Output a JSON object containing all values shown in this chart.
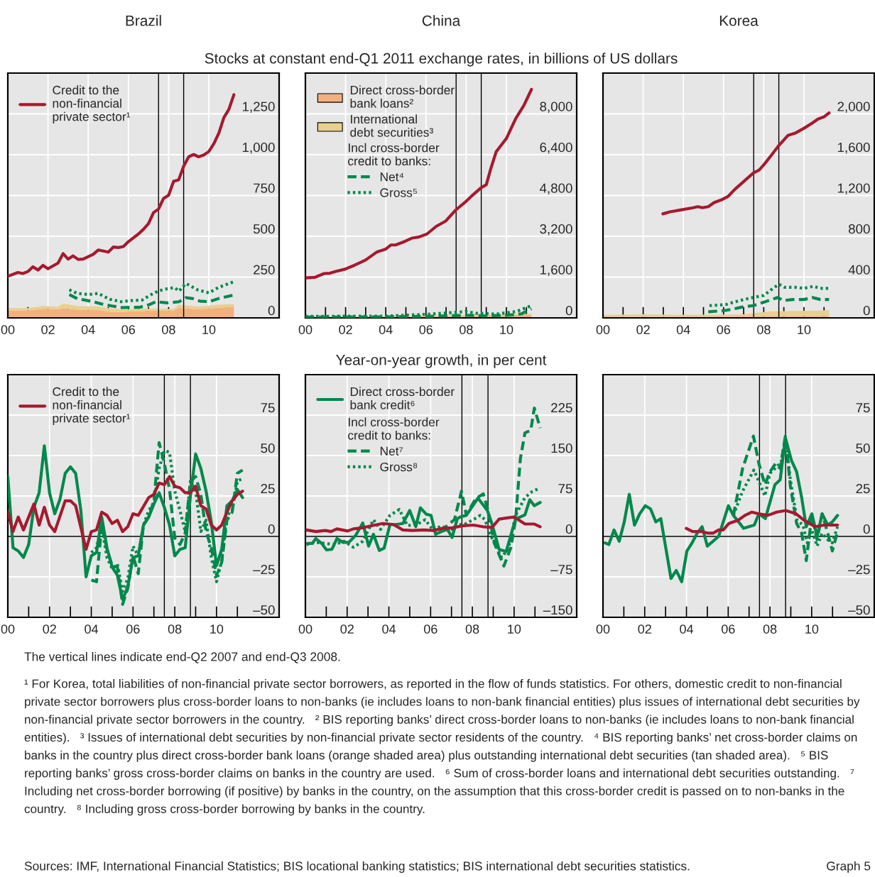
{
  "chart_data": [
    {
      "type": "line",
      "title": "Brazil",
      "stacked": true,
      "grid": true,
      "legend": "top left",
      "xlim": [
        2000,
        2013.5
      ],
      "ylim": [
        0,
        1500
      ],
      "xticks": [
        {
          "value": 2000,
          "label": "00"
        },
        {
          "value": 2002,
          "label": "02"
        },
        {
          "value": 2004,
          "label": "04"
        },
        {
          "value": 2006,
          "label": "06"
        },
        {
          "value": 2008,
          "label": "08"
        },
        {
          "value": 2010,
          "label": "10"
        },
        {
          "value": 2001,
          "label": null
        },
        {
          "value": 2003,
          "label": null
        },
        {
          "value": 2005,
          "label": null
        },
        {
          "value": 2007,
          "label": null
        },
        {
          "value": 2009,
          "label": null
        },
        {
          "value": 2011,
          "label": null
        }
      ],
      "yticks": [
        0,
        250,
        500,
        750,
        {
          "value": 1000,
          "label": "1,000"
        },
        {
          "value": 1250,
          "label": "1,250"
        }
      ],
      "ref_lines": [
        {
          "axis": "x",
          "value": 2007.5
        },
        {
          "axis": "x",
          "value": 2008.75
        }
      ],
      "series": [
        {
          "type": "area",
          "color": "#f3b07f",
          "x": [
            2000,
            2001,
            2001.75,
            2002.5,
            2002.75,
            2003.5,
            2004.5,
            2005.25,
            2006,
            2006.75,
            2007.5,
            2008.25,
            2008.5,
            2009.5,
            2010.5,
            2011.25
          ],
          "values": [
            46,
            46,
            55,
            52,
            58,
            50,
            48,
            35,
            38,
            42,
            44,
            42,
            62,
            52,
            62,
            68
          ]
        },
        {
          "type": "area",
          "color": "#e8d08f",
          "x": [
            2000,
            2001,
            2001.75,
            2002.5,
            2002.75,
            2003.5,
            2004.5,
            2005.25,
            2006,
            2006.75,
            2007.5,
            2008.25,
            2008.5,
            2009.5,
            2010.5,
            2011.25
          ],
          "values": [
            14,
            14,
            18,
            16,
            30,
            22,
            22,
            20,
            15,
            15,
            12,
            12,
            18,
            18,
            18,
            17
          ]
        },
        {
          "type": "line",
          "line_style": "dashed",
          "color": "#00884b",
          "x": [
            2003.06,
            2003.46,
            2004.26,
            2004.72,
            2005.18,
            2005.7,
            2006.1,
            2006.56,
            2007.02,
            2007.37,
            2007.94,
            2008.52,
            2008.86,
            2009.21,
            2009.55,
            2010.01,
            2010.47,
            2011.28
          ],
          "values": [
            143,
            118,
            99,
            84,
            73,
            63,
            65,
            65,
            80,
            99,
            92,
            99,
            124,
            118,
            103,
            99,
            118,
            141
          ]
        },
        {
          "type": "line",
          "line_style": "dotted",
          "color": "#00884b",
          "x": [
            2003.06,
            2003.46,
            2004.03,
            2004.49,
            2005.07,
            2005.64,
            2006.1,
            2006.68,
            2007.14,
            2007.48,
            2007.83,
            2008.29,
            2008.52,
            2008.86,
            2009.44,
            2010.01,
            2010.47,
            2011.28
          ],
          "values": [
            172,
            150,
            143,
            150,
            114,
            99,
            106,
            109,
            143,
            164,
            176,
            186,
            164,
            211,
            172,
            153,
            186,
            223
          ]
        },
        {
          "type": "line",
          "line_style": "solid",
          "name": "Credit to the\nnon-financial\nprivate sector¹",
          "color": "#a6192e",
          "x": [
            2000,
            2000.5,
            2000.75,
            2001,
            2001.25,
            2001.5,
            2001.75,
            2002,
            2002.5,
            2002.75,
            2003,
            2003.25,
            2003.5,
            2003.75,
            2004.25,
            2004.5,
            2005,
            2005.25,
            2005.5,
            2005.75,
            2006,
            2006.5,
            2006.75,
            2007,
            2007.25,
            2007.5,
            2007.75,
            2008,
            2008.25,
            2008.5,
            2008.75,
            2009,
            2009.25,
            2009.5,
            2009.75,
            2010,
            2010.25,
            2010.5,
            2010.75,
            2011,
            2011.25
          ],
          "values": [
            255,
            278,
            272,
            284,
            313,
            293,
            322,
            301,
            336,
            394,
            360,
            380,
            358,
            360,
            390,
            416,
            403,
            434,
            431,
            437,
            467,
            514,
            543,
            578,
            645,
            667,
            732,
            751,
            837,
            846,
            929,
            987,
            1001,
            987,
            998,
            1019,
            1067,
            1132,
            1227,
            1278,
            1368
          ]
        }
      ]
    },
    {
      "type": "line",
      "title": "China",
      "subtitle": "Stocks at constant end-Q1 2011 exchange rates, in billions of US dollars",
      "stacked": true,
      "grid": true,
      "legend": "top left",
      "legend_title": "Incl cross-border\ncredit to banks:",
      "xlim": [
        2000,
        2013.5
      ],
      "ylim": [
        0,
        9600
      ],
      "xticks": [
        {
          "value": 2000,
          "label": "00"
        },
        {
          "value": 2002,
          "label": "02"
        },
        {
          "value": 2004,
          "label": "04"
        },
        {
          "value": 2006,
          "label": "06"
        },
        {
          "value": 2008,
          "label": "08"
        },
        {
          "value": 2010,
          "label": "10"
        },
        {
          "value": 2001,
          "label": null
        },
        {
          "value": 2003,
          "label": null
        },
        {
          "value": 2005,
          "label": null
        },
        {
          "value": 2007,
          "label": null
        },
        {
          "value": 2009,
          "label": null
        },
        {
          "value": 2011,
          "label": null
        }
      ],
      "yticks": [
        0,
        {
          "value": 1600,
          "label": "1,600"
        },
        {
          "value": 3200,
          "label": "3,200"
        },
        {
          "value": 4800,
          "label": "4,800"
        },
        {
          "value": 6400,
          "label": "6,400"
        },
        {
          "value": 8000,
          "label": "8,000"
        }
      ],
      "ref_lines": [
        {
          "axis": "x",
          "value": 2007.5
        },
        {
          "axis": "x",
          "value": 2008.75
        }
      ],
      "series": [
        {
          "type": "area",
          "name": "Direct cross-border\nbank loans²",
          "color": "#f3b07f",
          "x": [
            2000,
            2005,
            2008,
            2011.25
          ],
          "values": [
            30,
            40,
            80,
            120
          ]
        },
        {
          "type": "area",
          "name": "International\ndebt securities³",
          "color": "#e8d08f",
          "x": [
            2000,
            2005,
            2008,
            2011.25
          ],
          "values": [
            20,
            30,
            40,
            40
          ]
        },
        {
          "type": "line",
          "line_style": "dashed",
          "name": "Net⁴",
          "color": "#00884b",
          "x": [
            2000,
            2004,
            2006,
            2008,
            2009,
            2010,
            2010.75,
            2011.25
          ],
          "values": [
            30,
            40,
            60,
            100,
            80,
            100,
            160,
            350
          ]
        },
        {
          "type": "line",
          "line_style": "dotted",
          "name": "Gross⁵",
          "color": "#00884b",
          "x": [
            2000,
            2004,
            2006,
            2007,
            2008,
            2008.5,
            2009.5,
            2010.5,
            2011.25
          ],
          "values": [
            60,
            70,
            140,
            190,
            250,
            180,
            150,
            250,
            480
          ]
        },
        {
          "type": "line",
          "line_style": "solid",
          "color": "#a6192e",
          "x": [
            2000.01,
            2000.47,
            2000.93,
            2001.22,
            2001.51,
            2001.97,
            2002.43,
            2003.0,
            2003.57,
            2003.98,
            2004.26,
            2004.49,
            2004.95,
            2005.3,
            2005.64,
            2006.05,
            2006.51,
            2006.97,
            2007.48,
            2007.94,
            2008.29,
            2008.75,
            2009.0,
            2009.21,
            2009.49,
            2010.01,
            2010.47,
            2010.87,
            2011.25
          ],
          "values": [
            1570,
            1590,
            1740,
            1750,
            1820,
            1910,
            2060,
            2270,
            2590,
            2690,
            2860,
            2860,
            3000,
            3130,
            3170,
            3290,
            3590,
            3790,
            4230,
            4530,
            4790,
            5110,
            5220,
            5810,
            6510,
            7050,
            7820,
            8330,
            8960
          ]
        }
      ]
    },
    {
      "type": "line",
      "title": "Korea",
      "stacked": true,
      "grid": true,
      "xlim": [
        2000,
        2013.5
      ],
      "ylim": [
        0,
        2400
      ],
      "xticks": [
        {
          "value": 2000,
          "label": "00"
        },
        {
          "value": 2002,
          "label": "02"
        },
        {
          "value": 2004,
          "label": "04"
        },
        {
          "value": 2006,
          "label": "06"
        },
        {
          "value": 2008,
          "label": "08"
        },
        {
          "value": 2010,
          "label": "10"
        },
        {
          "value": 2001,
          "label": null
        },
        {
          "value": 2003,
          "label": null
        },
        {
          "value": 2005,
          "label": null
        },
        {
          "value": 2007,
          "label": null
        },
        {
          "value": 2009,
          "label": null
        },
        {
          "value": 2011,
          "label": null
        }
      ],
      "yticks": [
        0,
        400,
        800,
        {
          "value": 1200,
          "label": "1,200"
        },
        {
          "value": 1600,
          "label": "1,600"
        },
        {
          "value": 2000,
          "label": "2,000"
        }
      ],
      "ref_lines": [
        {
          "axis": "x",
          "value": 2007.5
        },
        {
          "axis": "x",
          "value": 2008.75
        }
      ],
      "series": [
        {
          "type": "area",
          "color": "#f3b07f",
          "x": [
            2000,
            2002,
            2004,
            2007,
            2008.25,
            2011.25
          ],
          "values": [
            12,
            12,
            12,
            15,
            18,
            20
          ]
        },
        {
          "type": "area",
          "color": "#e8d08f",
          "x": [
            2000,
            2002,
            2004,
            2007,
            2008.25,
            2011.25
          ],
          "values": [
            18,
            22,
            18,
            20,
            45,
            55
          ]
        },
        {
          "type": "line",
          "line_style": "dashed",
          "color": "#00884b",
          "x": [
            2005.24,
            2005.99,
            2006.56,
            2007.02,
            2007.48,
            2007.94,
            2008.4,
            2008.69,
            2008.98,
            2009.44,
            2010.01,
            2010.41,
            2010.82,
            2011.25
          ],
          "values": [
            60,
            70,
            90,
            110,
            120,
            150,
            180,
            200,
            170,
            180,
            180,
            200,
            180,
            180
          ]
        },
        {
          "type": "line",
          "line_style": "dotted",
          "color": "#00884b",
          "x": [
            2005.3,
            2006.1,
            2006.79,
            2007.48,
            2008.0,
            2008.4,
            2008.75,
            2009.03,
            2009.55,
            2010.01,
            2010.47,
            2010.82,
            2011.25
          ],
          "values": [
            120,
            130,
            170,
            200,
            220,
            280,
            330,
            300,
            300,
            290,
            310,
            290,
            290
          ]
        },
        {
          "type": "line",
          "line_style": "solid",
          "color": "#a6192e",
          "x": [
            2002.98,
            2003.34,
            2003.92,
            2004.49,
            2004.72,
            2004.95,
            2005.24,
            2005.53,
            2005.93,
            2006.22,
            2006.56,
            2007.02,
            2007.48,
            2007.77,
            2008.0,
            2008.4,
            2008.75,
            2009.21,
            2009.55,
            2010.01,
            2010.41,
            2010.7,
            2010.99,
            2011.25
          ],
          "values": [
            1020,
            1040,
            1060,
            1080,
            1090,
            1080,
            1090,
            1130,
            1160,
            1190,
            1260,
            1340,
            1420,
            1450,
            1500,
            1600,
            1690,
            1790,
            1810,
            1860,
            1910,
            1950,
            1970,
            2010
          ]
        }
      ]
    },
    {
      "type": "line",
      "grid": true,
      "legend": "top left",
      "xlim": [
        2000,
        2013
      ],
      "ylim": [
        -50,
        100
      ],
      "xticks": [
        {
          "value": 2000,
          "label": "00"
        },
        {
          "value": 2002,
          "label": "02"
        },
        {
          "value": 2004,
          "label": "04"
        },
        {
          "value": 2006,
          "label": "06"
        },
        {
          "value": 2008,
          "label": "08"
        },
        {
          "value": 2010,
          "label": "10"
        },
        {
          "value": 2001,
          "label": null
        },
        {
          "value": 2003,
          "label": null
        },
        {
          "value": 2005,
          "label": null
        },
        {
          "value": 2007,
          "label": null
        },
        {
          "value": 2009,
          "label": null
        },
        {
          "value": 2011,
          "label": null
        }
      ],
      "yticks": [
        {
          "value": -50,
          "label": "–50"
        },
        {
          "value": -25,
          "label": "–25"
        },
        0,
        25,
        50,
        75
      ],
      "ref_lines": [
        {
          "axis": "x",
          "value": 2007.5
        },
        {
          "axis": "x",
          "value": 2008.75
        },
        {
          "axis": "y",
          "value": 0
        }
      ],
      "series": [
        {
          "type": "line",
          "line_style": "dashed",
          "color": "#00884b",
          "x": [
            2004,
            2004.25,
            2004.5,
            2004.75,
            2005,
            2005.25,
            2005.5,
            2005.75,
            2006,
            2006.25,
            2006.5,
            2006.75,
            2007,
            2007.25,
            2007.5,
            2007.75,
            2008,
            2008.25,
            2008.5,
            2008.75,
            2009,
            2009.25,
            2009.5,
            2009.75,
            2010,
            2010.25,
            2010.5,
            2010.75,
            2011,
            2011.25
          ],
          "values": [
            -27,
            -28,
            7,
            -8,
            -18,
            -19,
            -42,
            -32,
            -12,
            -23,
            7,
            12,
            22,
            58,
            45,
            29,
            -1,
            -5,
            2,
            34,
            37,
            26,
            3,
            -7,
            -24,
            -16,
            10,
            15,
            39,
            41
          ]
        },
        {
          "type": "line",
          "line_style": "dotted",
          "color": "#00884b",
          "x": [
            2004,
            2004.25,
            2004.5,
            2004.75,
            2005,
            2005.25,
            2005.5,
            2005.75,
            2006,
            2006.25,
            2006.5,
            2006.75,
            2007,
            2007.25,
            2007.5,
            2007.75,
            2008,
            2008.25,
            2008.5,
            2008.75,
            2009,
            2009.25,
            2009.5,
            2009.75,
            2010,
            2010.25,
            2010.5,
            2010.75,
            2011,
            2011.25
          ],
          "values": [
            -10,
            -7,
            6,
            -13,
            -20,
            -17,
            -34,
            -26,
            -6,
            -12,
            7,
            16,
            21,
            42,
            53,
            52,
            28,
            16,
            3,
            34,
            28,
            3,
            10,
            -13,
            -28,
            -15,
            13,
            16,
            34,
            36
          ]
        },
        {
          "type": "line",
          "line_style": "solid",
          "color": "#00884b",
          "x": [
            2000,
            2000.25,
            2000.5,
            2000.75,
            2001,
            2001.25,
            2001.5,
            2001.75,
            2002,
            2002.25,
            2002.5,
            2002.75,
            2003,
            2003.25,
            2003.5,
            2003.75,
            2004,
            2004.25,
            2004.5,
            2004.75,
            2005,
            2005.25,
            2005.5,
            2005.75,
            2006,
            2006.25,
            2006.5,
            2006.75,
            2007,
            2007.25,
            2007.5,
            2007.75,
            2008,
            2008.25,
            2008.5,
            2008.75,
            2009,
            2009.25,
            2009.5,
            2009.75,
            2010,
            2010.25,
            2010.5,
            2010.75,
            2011,
            2011.25
          ],
          "values": [
            37,
            -7,
            -9,
            -13,
            -5,
            18,
            27,
            56,
            27,
            14,
            23,
            39,
            43,
            39,
            16,
            -25,
            -12,
            -10,
            12,
            -7,
            -19,
            -24,
            -39,
            -31,
            -13,
            -12,
            7,
            12,
            20,
            27,
            18,
            7,
            -12,
            -8,
            -7,
            25,
            51,
            42,
            28,
            9,
            -18,
            -8,
            19,
            22,
            29,
            24
          ]
        },
        {
          "type": "line",
          "line_style": "solid",
          "name": "Credit to the\nnon-financial\nprivate sector¹",
          "color": "#a6192e",
          "x": [
            2000,
            2000.25,
            2000.5,
            2000.75,
            2001.25,
            2001.5,
            2001.75,
            2002,
            2002.25,
            2002.75,
            2003,
            2003.25,
            2003.75,
            2004,
            2004.25,
            2004.5,
            2004.75,
            2005,
            2005.25,
            2005.5,
            2005.75,
            2006,
            2006.25,
            2006.75,
            2007,
            2007.25,
            2007.5,
            2007.75,
            2008,
            2008.25,
            2008.5,
            2008.75,
            2009,
            2009.25,
            2009.5,
            2009.75,
            2010,
            2010.25,
            2010.5,
            2010.75,
            2011,
            2011.25
          ],
          "values": [
            15,
            3,
            12,
            4,
            20,
            7,
            18,
            7,
            3,
            22,
            22,
            19,
            -8,
            3,
            4,
            15,
            13,
            8,
            10,
            3,
            6,
            14,
            13,
            24,
            26,
            33,
            32,
            37,
            31,
            30,
            27,
            27,
            31,
            19,
            17,
            7,
            4,
            7,
            15,
            22,
            26,
            28
          ]
        }
      ]
    },
    {
      "type": "line",
      "subtitle": "Year-on-year growth, in per cent",
      "grid": true,
      "legend": "top left",
      "legend_title": "Incl cross-border\ncredit to banks:",
      "xlim": [
        2000,
        2013
      ],
      "ylim": [
        -150,
        300
      ],
      "xticks": [
        {
          "value": 2000,
          "label": "00"
        },
        {
          "value": 2002,
          "label": "02"
        },
        {
          "value": 2004,
          "label": "04"
        },
        {
          "value": 2006,
          "label": "06"
        },
        {
          "value": 2008,
          "label": "08"
        },
        {
          "value": 2010,
          "label": "10"
        },
        {
          "value": 2001,
          "label": null
        },
        {
          "value": 2003,
          "label": null
        },
        {
          "value": 2005,
          "label": null
        },
        {
          "value": 2007,
          "label": null
        },
        {
          "value": 2009,
          "label": null
        },
        {
          "value": 2011,
          "label": null
        }
      ],
      "yticks": [
        {
          "value": -150,
          "label": "–150"
        },
        {
          "value": -75,
          "label": "–75"
        },
        0,
        75,
        150,
        225
      ],
      "ref_lines": [
        {
          "axis": "x",
          "value": 2007.5
        },
        {
          "axis": "x",
          "value": 2008.75
        },
        {
          "axis": "y",
          "value": 0
        }
      ],
      "series": [
        {
          "type": "line",
          "line_style": "solid",
          "name": "Direct cross-border\nbank credit⁶",
          "color": "#00884b",
          "x": [
            2000.11,
            2000.33,
            2000.5,
            2000.78,
            2001.01,
            2001.27,
            2001.51,
            2001.8,
            2002.08,
            2002.41,
            2002.75,
            2003.03,
            2003.26,
            2003.54,
            2003.77,
            2004.05,
            2004.33,
            2004.67,
            2005.0,
            2005.29,
            2005.51,
            2005.8,
            2006.02,
            2006.24,
            2006.52,
            2006.81,
            2007.03,
            2007.28,
            2007.48,
            2007.71,
            2008.27,
            2008.72,
            2008.95,
            2009.28,
            2009.62,
            2010.07,
            2010.52,
            2010.75,
            2010.97,
            2011.25
          ],
          "values": [
            -13,
            -13,
            -4,
            -13,
            -25,
            -24,
            -4,
            -11,
            -11,
            2,
            25,
            -18,
            4,
            -26,
            -22,
            22,
            22,
            24,
            48,
            18,
            53,
            41,
            39,
            4,
            9,
            13,
            -2,
            33,
            37,
            39,
            71,
            48,
            22,
            -24,
            -28,
            32,
            40,
            68,
            57,
            63
          ]
        },
        {
          "type": "line",
          "line_style": "dashed",
          "name": "Net⁷",
          "color": "#00884b",
          "x": [
            2006.47,
            2007.14,
            2007.48,
            2007.71,
            2008.16,
            2008.52,
            2008.72,
            2009.06,
            2009.51,
            2009.85,
            2010.07,
            2010.3,
            2010.52,
            2010.8,
            2010.97,
            2011.25
          ],
          "values": [
            10,
            31,
            84,
            40,
            70,
            79,
            53,
            -13,
            -55,
            -20,
            31,
            144,
            192,
            197,
            238,
            201
          ]
        },
        {
          "type": "line",
          "line_style": "dotted",
          "name": "Gross⁸",
          "color": "#00884b",
          "x": [
            2000.05,
            2000.5,
            2000.95,
            2001.4,
            2001.85,
            2002.3,
            2002.75,
            2003.26,
            2003.6,
            2004.05,
            2004.5,
            2004.89,
            2005.34,
            2005.74,
            2006.13,
            2006.52,
            2006.92,
            2007.26,
            2007.6,
            2008.04,
            2008.38,
            2008.6,
            2008.95,
            2009.4,
            2009.73,
            2010.07,
            2010.52,
            2010.86,
            2011.25
          ],
          "values": [
            -15,
            -11,
            -13,
            -15,
            -9,
            -20,
            -9,
            31,
            13,
            39,
            50,
            20,
            22,
            31,
            11,
            20,
            9,
            22,
            22,
            31,
            39,
            31,
            -4,
            -39,
            -22,
            39,
            72,
            83,
            90
          ]
        },
        {
          "type": "line",
          "line_style": "solid",
          "color": "#a6192e",
          "x": [
            2000.05,
            2000.5,
            2000.95,
            2001.23,
            2001.51,
            2002.02,
            2002.3,
            2002.75,
            2003.2,
            2003.71,
            2004.22,
            2004.67,
            2005.12,
            2005.68,
            2006.13,
            2006.58,
            2007.03,
            2007.59,
            2008.04,
            2008.5,
            2008.95,
            2009.28,
            2009.62,
            2010.01,
            2010.52,
            2010.97,
            2011.25
          ],
          "values": [
            12,
            9,
            11,
            9,
            14,
            10,
            14,
            16,
            20,
            24,
            22,
            12,
            11,
            12,
            11,
            15,
            16,
            20,
            21,
            18,
            17,
            32,
            34,
            36,
            23,
            23,
            18
          ]
        }
      ]
    },
    {
      "type": "line",
      "grid": true,
      "xlim": [
        2000,
        2013
      ],
      "ylim": [
        -50,
        100
      ],
      "xticks": [
        {
          "value": 2000,
          "label": "00"
        },
        {
          "value": 2002,
          "label": "02"
        },
        {
          "value": 2004,
          "label": "04"
        },
        {
          "value": 2006,
          "label": "06"
        },
        {
          "value": 2008,
          "label": "08"
        },
        {
          "value": 2010,
          "label": "10"
        },
        {
          "value": 2001,
          "label": null
        },
        {
          "value": 2003,
          "label": null
        },
        {
          "value": 2005,
          "label": null
        },
        {
          "value": 2007,
          "label": null
        },
        {
          "value": 2009,
          "label": null
        },
        {
          "value": 2011,
          "label": null
        }
      ],
      "yticks": [
        {
          "value": -50,
          "label": "–50"
        },
        {
          "value": -25,
          "label": "–25"
        },
        0,
        25,
        50,
        75
      ],
      "ref_lines": [
        {
          "axis": "x",
          "value": 2007.5
        },
        {
          "axis": "x",
          "value": 2008.75
        },
        {
          "axis": "y",
          "value": 0
        }
      ],
      "series": [
        {
          "type": "line",
          "line_style": "dashed",
          "color": "#00884b",
          "x": [
            2006.25,
            2006.69,
            2007.21,
            2007.47,
            2007.76,
            2008.0,
            2008.27,
            2008.49,
            2008.74,
            2008.98,
            2009.28,
            2009.52,
            2009.74,
            2010.01,
            2010.26,
            2010.5,
            2010.77,
            2010.99,
            2011.24
          ],
          "values": [
            13,
            42,
            62,
            45,
            32,
            40,
            45,
            42,
            62,
            31,
            8,
            2,
            -15,
            13,
            -2,
            14,
            2,
            -9,
            3
          ]
        },
        {
          "type": "line",
          "line_style": "dotted",
          "color": "#00884b",
          "x": [
            2006.25,
            2006.69,
            2007.23,
            2007.47,
            2007.76,
            2008.0,
            2008.32,
            2008.54,
            2008.74,
            2008.98,
            2009.3,
            2009.58,
            2009.79,
            2010.01,
            2010.26,
            2010.5,
            2010.77,
            2010.99,
            2011.24
          ],
          "values": [
            13,
            28,
            41,
            34,
            25,
            39,
            43,
            46,
            61,
            35,
            10,
            7,
            -4,
            4,
            -6,
            2,
            -2,
            -4,
            6
          ]
        },
        {
          "type": "line",
          "line_style": "solid",
          "color": "#00884b",
          "x": [
            2000.1,
            2000.28,
            2000.53,
            2000.78,
            2001.02,
            2001.26,
            2001.51,
            2001.76,
            2002.03,
            2002.28,
            2002.53,
            2002.77,
            2003.26,
            2003.51,
            2003.77,
            2004.02,
            2004.27,
            2004.51,
            2004.75,
            2005.0,
            2005.27,
            2005.54,
            2006.01,
            2006.25,
            2006.74,
            2007.25,
            2007.47,
            2007.78,
            2008.24,
            2008.49,
            2008.74,
            2009.03,
            2009.28,
            2009.52,
            2009.74,
            2010.01,
            2010.26,
            2010.5,
            2010.77,
            2010.99,
            2011.24
          ],
          "values": [
            -4,
            -5,
            4,
            -3,
            9,
            26,
            7,
            14,
            19,
            17,
            9,
            11,
            -26,
            -21,
            -28,
            -9,
            -4,
            2,
            6,
            -6,
            -3,
            0,
            19,
            13,
            5,
            7,
            14,
            11,
            32,
            35,
            61,
            47,
            40,
            24,
            6,
            14,
            0,
            14,
            7,
            9,
            13
          ]
        },
        {
          "type": "line",
          "line_style": "solid",
          "color": "#a6192e",
          "x": [
            2003.99,
            2004.29,
            2004.73,
            2005.05,
            2005.27,
            2005.54,
            2005.76,
            2006.03,
            2006.47,
            2006.8,
            2007.12,
            2007.45,
            2007.89,
            2008.32,
            2008.76,
            2009.25,
            2009.63,
            2010.17,
            2010.61,
            2010.94,
            2011.24
          ],
          "values": [
            5,
            3,
            3,
            2,
            2,
            4,
            4,
            8,
            10,
            13,
            15,
            14,
            13,
            15,
            16,
            14,
            10,
            6,
            7,
            7,
            7
          ]
        }
      ],
      "annotations": [
        "The vertical lines indicate end-Q2 2007 and end-Q3 2008.",
        "¹ For Korea, total liabilities of non-financial private sector borrowers, as reported in the flow of funds statistics. For others, domestic credit to non-financial private sector borrowers plus cross-border loans to non-banks (ie includes loans to non-bank financial entities) plus issues of international debt securities by non-financial private sector borrowers in the country.   ² BIS reporting banks’ direct cross-border loans to non-banks (ie includes loans to non-bank financial entities).   ³ Issues of international debt securities by non-financial private sector residents of the country.   ⁴ BIS reporting banks’ net cross-border claims on banks in the country plus direct cross-border bank loans (orange shaded area) plus outstanding international debt securities (tan shaded area).   ⁵ BIS reporting banks’ gross cross-border claims on banks in the country are used.   ⁶ Sum of cross-border loans and international debt securities outstanding.   ⁷ Including net cross-border borrowing (if positive) by banks in the country, on the assumption that this cross-border credit is passed on to non-banks in the country.   ⁸ Including gross cross-border borrowing by banks in the country.",
        "Sources: IMF, International Financial Statistics; BIS locational banking statistics; BIS international debt securities statistics.",
        "Graph 5"
      ]
    }
  ]
}
